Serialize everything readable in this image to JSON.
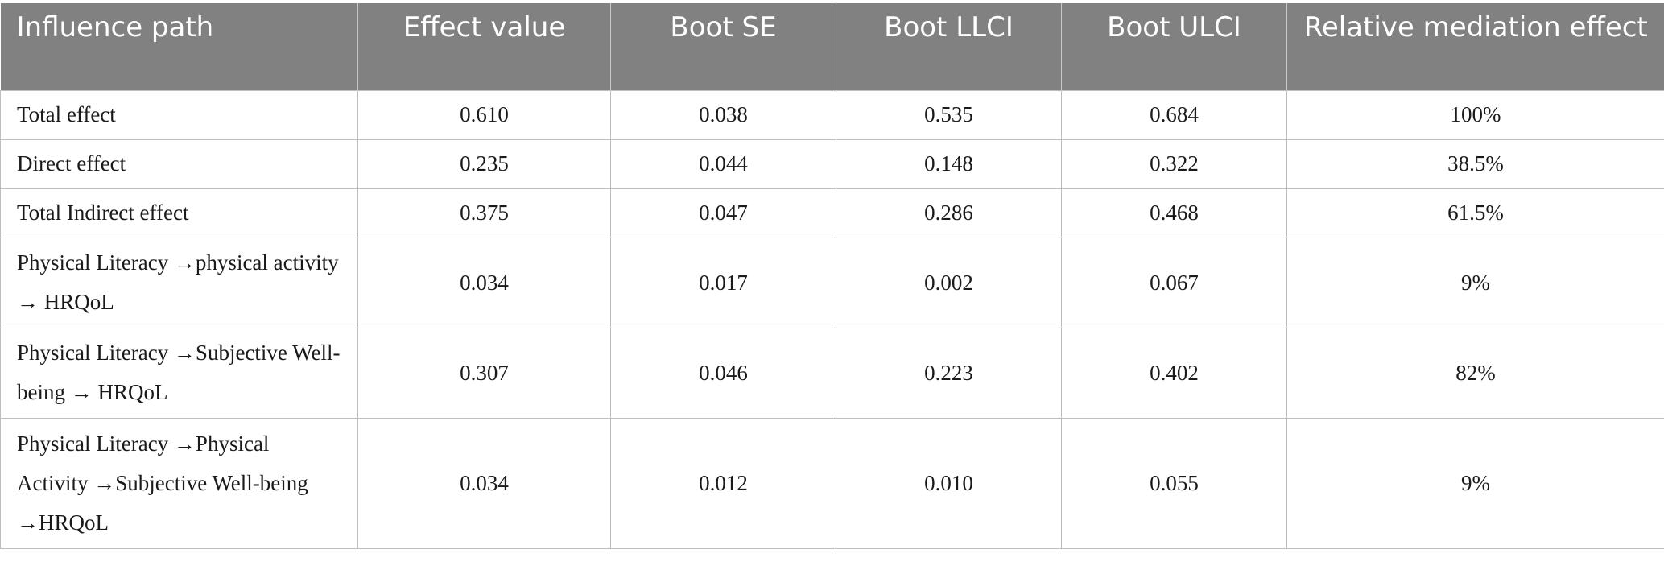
{
  "table": {
    "headers": [
      "Influence path",
      "Effect value",
      "Boot SE",
      "Boot LLCI",
      "Boot ULCI",
      "Relative mediation effect"
    ],
    "rows": [
      [
        "Total effect",
        "0.610",
        "0.038",
        "0.535",
        "0.684",
        "100%"
      ],
      [
        "Direct effect",
        "0.235",
        "0.044",
        "0.148",
        "0.322",
        "38.5%"
      ],
      [
        "Total Indirect effect",
        "0.375",
        "0.047",
        "0.286",
        "0.468",
        "61.5%"
      ],
      [
        "Physical Literacy →physical activity → HRQoL",
        "0.034",
        "0.017",
        "0.002",
        "0.067",
        "9%"
      ],
      [
        "Physical Literacy →Subjective Well-being → HRQoL",
        "0.307",
        "0.046",
        "0.223",
        "0.402",
        "82%"
      ],
      [
        "Physical Literacy →Physical Activity →Subjective Well-being →HRQoL",
        "0.034",
        "0.012",
        "0.010",
        "0.055",
        "9%"
      ]
    ]
  },
  "colors": {
    "header_bg": "#808180",
    "header_text": "#ffffff",
    "grid_line": "#bdbdbd"
  }
}
